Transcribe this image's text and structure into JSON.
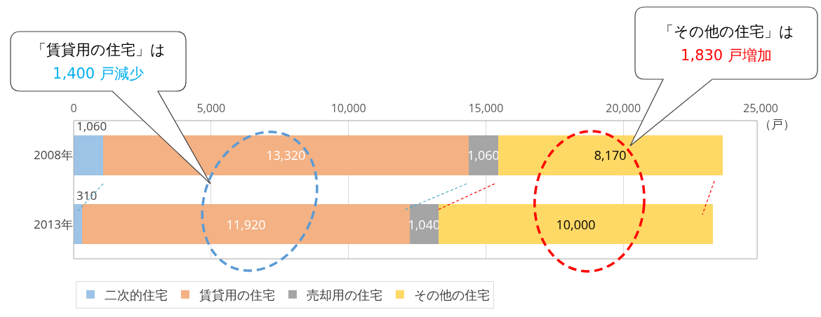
{
  "chart_data": {
    "type": "bar",
    "orientation": "horizontal",
    "stacked": true,
    "categories": [
      "2008年",
      "2013年"
    ],
    "series": [
      {
        "name": "二次的住宅",
        "color": "#9dc3e6",
        "values": [
          1060,
          310
        ],
        "value_labels": [
          "1,060",
          "310"
        ]
      },
      {
        "name": "賃貸用の住宅",
        "color": "#f4b183",
        "values": [
          13320,
          11920
        ],
        "value_labels": [
          "13,320",
          "11,920"
        ]
      },
      {
        "name": "売却用の住宅",
        "color": "#a5a5a5",
        "values": [
          1060,
          1040
        ],
        "value_labels": [
          "1,060",
          "1,040"
        ]
      },
      {
        "name": "その他の住宅",
        "color": "#ffd966",
        "values": [
          8170,
          10000
        ],
        "value_labels": [
          "8,170",
          "10,000"
        ]
      }
    ],
    "xlim": [
      0,
      25000
    ],
    "xticks": [
      {
        "value": 0,
        "label": "0"
      },
      {
        "value": 5000,
        "label": "5,000"
      },
      {
        "value": 10000,
        "label": "10,000"
      },
      {
        "value": 15000,
        "label": "15,000"
      },
      {
        "value": 20000,
        "label": "20,000"
      },
      {
        "value": 25000,
        "label": "25,000"
      }
    ],
    "xlabel": "（戸）",
    "grid": "x",
    "legend": "bottom",
    "annotations": [
      "「賃貸用の住宅」は",
      "1,400 戸減少",
      "「その他の住宅」は",
      "1,830 戸増加"
    ]
  }
}
